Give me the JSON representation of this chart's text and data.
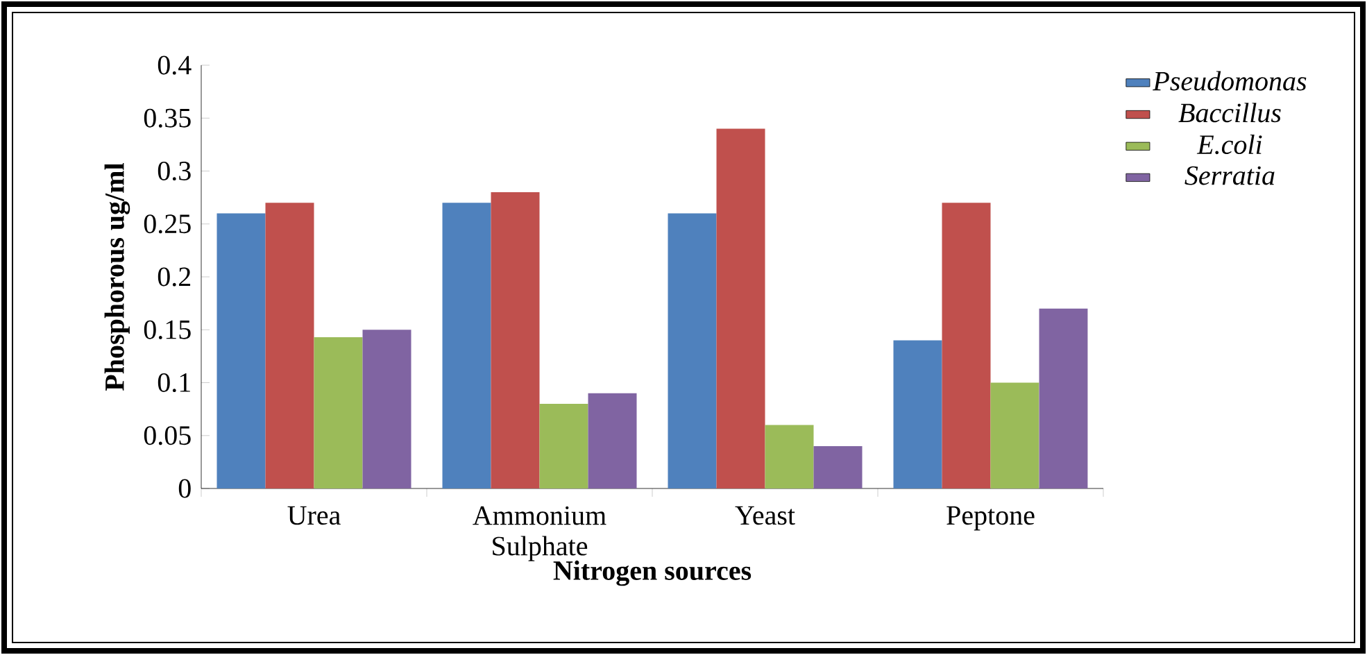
{
  "chart_data": {
    "type": "bar",
    "xlabel": "Nitrogen sources",
    "ylabel": "Phosphorous ug/ml",
    "categories": [
      "Urea",
      "Ammonium Sulphate",
      "Yeast",
      "Peptone"
    ],
    "series": [
      {
        "name": "Pseudomonas",
        "color": "#4f81bd",
        "values": [
          0.26,
          0.27,
          0.26,
          0.14
        ]
      },
      {
        "name": "Baccillus",
        "color": "#c0504d",
        "values": [
          0.27,
          0.28,
          0.34,
          0.27
        ]
      },
      {
        "name": "E.coli",
        "color": "#9bbb59",
        "values": [
          0.143,
          0.08,
          0.06,
          0.1
        ]
      },
      {
        "name": "Serratia",
        "color": "#8064a2",
        "values": [
          0.15,
          0.09,
          0.04,
          0.17
        ]
      }
    ],
    "ylim": [
      0,
      0.4
    ],
    "yticks": [
      0,
      0.05,
      0.1,
      0.15,
      0.2,
      0.25,
      0.3,
      0.35,
      0.4
    ],
    "grid": false,
    "legend": "top right"
  }
}
